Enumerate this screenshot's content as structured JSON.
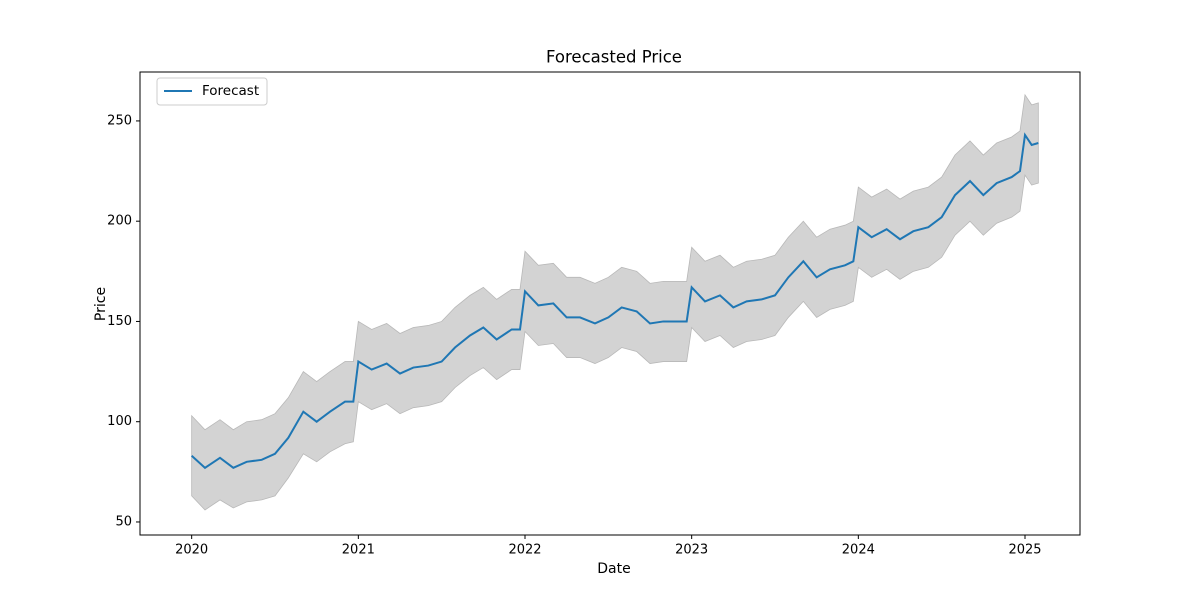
{
  "chart_data": {
    "type": "line",
    "title": "Forecasted Price",
    "x_label": "Date",
    "y_label": "Price",
    "x": [
      2020.0,
      2020.08,
      2020.17,
      2020.25,
      2020.33,
      2020.42,
      2020.5,
      2020.58,
      2020.67,
      2020.75,
      2020.83,
      2020.92,
      2020.97,
      2021.0,
      2021.08,
      2021.17,
      2021.25,
      2021.33,
      2021.42,
      2021.5,
      2021.58,
      2021.67,
      2021.75,
      2021.83,
      2021.92,
      2021.97,
      2022.0,
      2022.08,
      2022.17,
      2022.25,
      2022.33,
      2022.42,
      2022.5,
      2022.58,
      2022.67,
      2022.75,
      2022.83,
      2022.92,
      2022.97,
      2023.0,
      2023.08,
      2023.17,
      2023.25,
      2023.33,
      2023.42,
      2023.5,
      2023.58,
      2023.67,
      2023.75,
      2023.83,
      2023.92,
      2023.97,
      2024.0,
      2024.08,
      2024.17,
      2024.25,
      2024.33,
      2024.42,
      2024.5,
      2024.58,
      2024.67,
      2024.75,
      2024.83,
      2024.92,
      2024.97,
      2025.0,
      2025.04,
      2025.08
    ],
    "series": [
      {
        "name": "Forecast",
        "color": "#1f77b4",
        "values": [
          83,
          77,
          82,
          77,
          80,
          81,
          84,
          92,
          105,
          100,
          105,
          110,
          110,
          130,
          126,
          129,
          124,
          127,
          128,
          130,
          137,
          143,
          147,
          141,
          146,
          146,
          165,
          158,
          159,
          152,
          152,
          149,
          152,
          157,
          155,
          149,
          150,
          150,
          150,
          167,
          160,
          163,
          157,
          160,
          161,
          163,
          172,
          180,
          172,
          176,
          178,
          180,
          197,
          192,
          196,
          191,
          195,
          197,
          202,
          213,
          220,
          213,
          219,
          222,
          225,
          243,
          238,
          239
        ]
      }
    ],
    "band": {
      "color": "#d3d3d3",
      "lower": [
        63,
        56,
        61,
        57,
        60,
        61,
        63,
        72,
        84,
        80,
        85,
        89,
        90,
        110,
        106,
        109,
        104,
        107,
        108,
        110,
        117,
        123,
        127,
        121,
        126,
        126,
        145,
        138,
        139,
        132,
        132,
        129,
        132,
        137,
        135,
        129,
        130,
        130,
        130,
        147,
        140,
        143,
        137,
        140,
        141,
        143,
        152,
        160,
        152,
        156,
        158,
        160,
        177,
        172,
        176,
        171,
        175,
        177,
        182,
        193,
        200,
        193,
        199,
        202,
        205,
        223,
        218,
        219
      ],
      "upper": [
        103,
        96,
        101,
        96,
        100,
        101,
        104,
        112,
        125,
        120,
        125,
        130,
        130,
        150,
        146,
        149,
        144,
        147,
        148,
        150,
        157,
        163,
        167,
        161,
        166,
        166,
        185,
        178,
        179,
        172,
        172,
        169,
        172,
        177,
        175,
        169,
        170,
        170,
        170,
        187,
        180,
        183,
        177,
        180,
        181,
        183,
        192,
        200,
        192,
        196,
        198,
        200,
        217,
        212,
        216,
        211,
        215,
        217,
        222,
        233,
        240,
        233,
        239,
        242,
        245,
        263,
        258,
        259
      ]
    },
    "xlim": [
      2019.69,
      2025.33
    ],
    "xticks": [
      2020,
      2021,
      2022,
      2023,
      2024,
      2025
    ],
    "ylim": [
      43.5,
      274.4
    ],
    "yticks": [
      50,
      100,
      150,
      200,
      250
    ],
    "legend": "upper left",
    "grid": false
  }
}
